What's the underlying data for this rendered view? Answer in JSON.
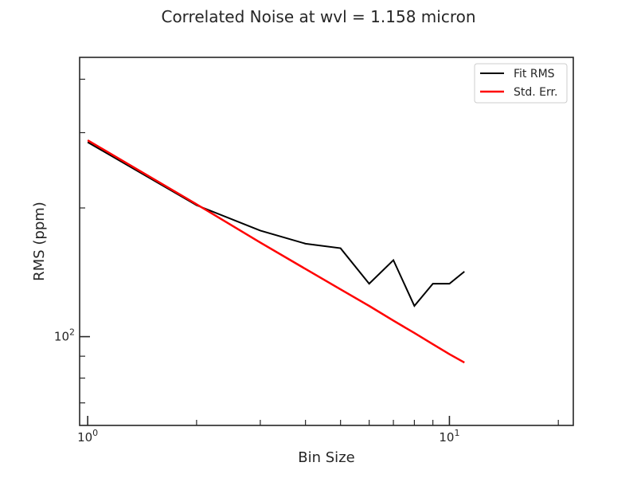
{
  "chart_data": {
    "type": "line",
    "title": "Correlated Noise at wvl = 1.158 micron",
    "xlabel": "Bin Size",
    "ylabel": "RMS (ppm)",
    "xscale": "log",
    "yscale": "log",
    "xlim": [
      0.95,
      22
    ],
    "ylim": [
      62,
      450
    ],
    "x_major_ticks": [
      {
        "value": 1,
        "base": "10",
        "exp": "0"
      },
      {
        "value": 10,
        "base": "10",
        "exp": "1"
      }
    ],
    "x_minor_ticks": [
      2,
      3,
      4,
      5,
      6,
      7,
      8,
      9,
      20
    ],
    "y_major_ticks": [
      {
        "value": 100,
        "base": "10",
        "exp": "2"
      }
    ],
    "y_minor_ticks": [
      70,
      80,
      90,
      200,
      300,
      400
    ],
    "grid": false,
    "legend": {
      "position": "top-right"
    },
    "series": [
      {
        "name": "Fit RMS",
        "color": "#000000",
        "x": [
          1,
          2,
          3,
          4,
          5,
          6,
          7,
          8,
          9,
          10,
          11
        ],
        "y": [
          285,
          203,
          177,
          165,
          161,
          133,
          151,
          118,
          133,
          133,
          142
        ]
      },
      {
        "name": "Std. Err.",
        "color": "#ff0000",
        "x": [
          1,
          2,
          3,
          4,
          5,
          6,
          7,
          8,
          9,
          10,
          11
        ],
        "y": [
          288,
          204,
          166,
          144,
          129,
          118,
          109,
          102,
          96,
          91,
          87
        ]
      }
    ]
  }
}
